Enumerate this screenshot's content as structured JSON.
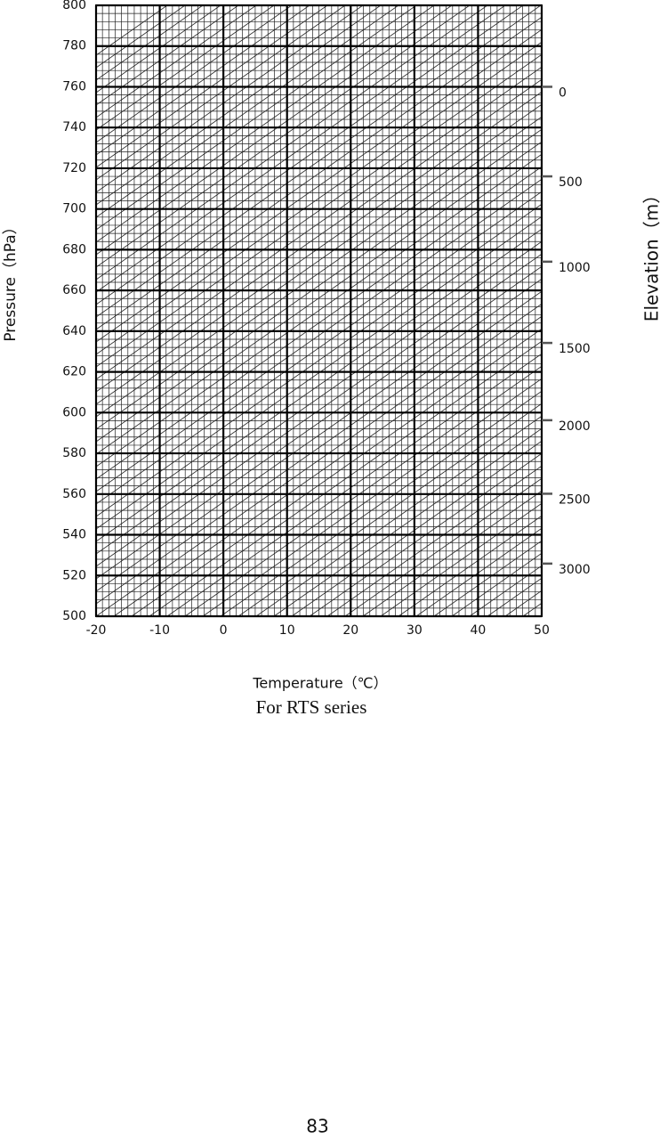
{
  "chart_data": {
    "type": "nomogram",
    "xlabel": "Temperature（℃）",
    "ylabel": "Pressure（hPa）",
    "y2label": "Elevation（m）",
    "xlim": [
      -20,
      50
    ],
    "xticks": [
      -20,
      -10,
      0,
      10,
      20,
      30,
      40,
      50
    ],
    "ylim": [
      500,
      800
    ],
    "yticks": [
      500,
      520,
      540,
      560,
      580,
      600,
      620,
      640,
      660,
      680,
      700,
      720,
      740,
      760,
      780,
      800
    ],
    "y2lim": [
      -435,
      3394
    ],
    "y2ticks": [
      0,
      500,
      1000,
      1500,
      2000,
      2500,
      3000
    ],
    "grid": true
  },
  "caption": "For RTS series",
  "page_number": "83"
}
